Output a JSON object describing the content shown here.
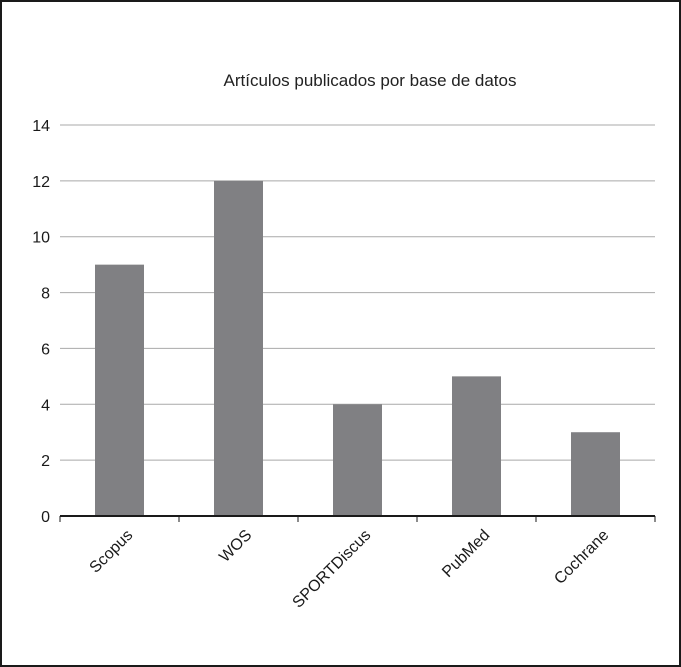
{
  "chart_data": {
    "type": "bar",
    "title": "Artículos publicados por base de datos",
    "categories": [
      "Scopus",
      "WOS",
      "SPORTDiscus",
      "PubMed",
      "Cochrane"
    ],
    "values": [
      9,
      12,
      4,
      5,
      3
    ],
    "ylim": [
      0,
      14
    ],
    "yticks": [
      0,
      2,
      4,
      6,
      8,
      10,
      12,
      14
    ],
    "grid": true,
    "bar_color": "#808083",
    "grid_color": "#a9a9a9",
    "legend": false
  }
}
